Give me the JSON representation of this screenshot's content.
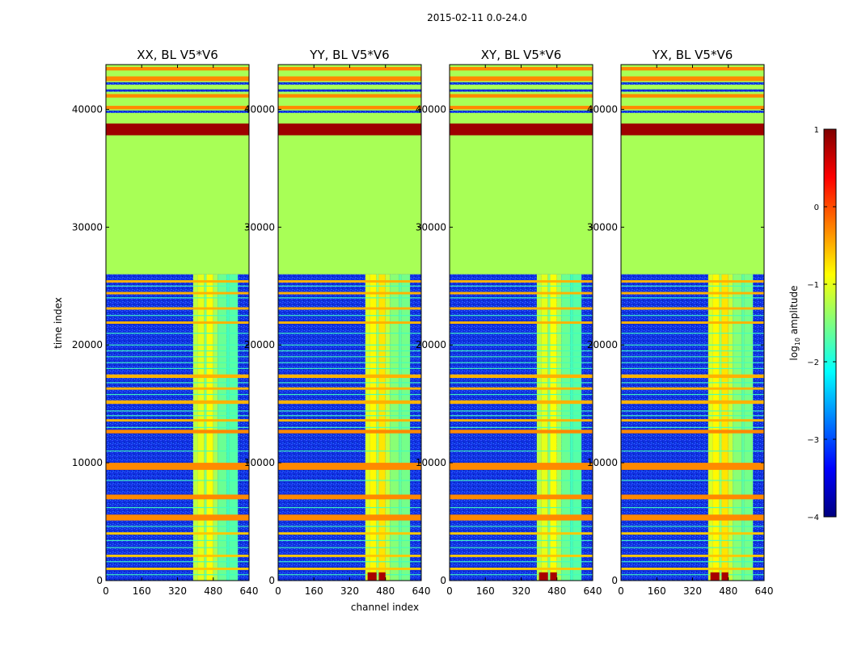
{
  "chart_data": {
    "type": "heatmap",
    "suptitle": "2015-02-11 0.0-24.0",
    "xlabel": "channel index",
    "ylabel": "time index",
    "xlim": [
      0,
      640
    ],
    "ylim": [
      0,
      43800
    ],
    "xticks": [
      0,
      160,
      320,
      480,
      640
    ],
    "yticks": [
      0,
      10000,
      20000,
      30000,
      40000
    ],
    "panels": [
      {
        "title": "XX, BL V5*V6"
      },
      {
        "title": "YY, BL V5*V6"
      },
      {
        "title": "XY, BL V5*V6"
      },
      {
        "title": "YX, BL V5*V6"
      }
    ],
    "colorbar": {
      "label_main": "log",
      "label_sub": "10",
      "label_tail": " amplitude",
      "range": [
        -4,
        1
      ],
      "ticks": [
        {
          "value": 1,
          "label": "1"
        },
        {
          "value": 0,
          "label": "0"
        },
        {
          "value": -1,
          "label": "−1"
        },
        {
          "value": -2,
          "label": "−2"
        },
        {
          "value": -3,
          "label": "−3"
        },
        {
          "value": -4,
          "label": "−4"
        }
      ],
      "colors": [
        "#00007f",
        "#0000ff",
        "#007fff",
        "#00ffff",
        "#7fff7f",
        "#ffff00",
        "#ff7f00",
        "#ff0000",
        "#7f0000"
      ]
    },
    "background_level": -3.1,
    "flagged_level": -1.3,
    "flagged_block": [
      26000,
      43800
    ],
    "bright_band": {
      "range": [
        37800,
        38800
      ],
      "level": 0.85
    },
    "horizontal_bands": [
      {
        "t0": 42400,
        "t1": 42800,
        "level": -0.3
      },
      {
        "t0": 41000,
        "t1": 41300,
        "level": -0.3
      },
      {
        "t0": 40000,
        "t1": 40300,
        "level": -0.2
      },
      {
        "t0": 25300,
        "t1": 25500,
        "level": -0.5
      },
      {
        "t0": 24300,
        "t1": 24500,
        "level": -0.5
      },
      {
        "t0": 23000,
        "t1": 23200,
        "level": -0.5
      },
      {
        "t0": 21800,
        "t1": 22000,
        "level": -0.5
      },
      {
        "t0": 17200,
        "t1": 17500,
        "level": -0.5
      },
      {
        "t0": 16200,
        "t1": 16400,
        "level": -0.5
      },
      {
        "t0": 15000,
        "t1": 15300,
        "level": -0.5
      },
      {
        "t0": 13500,
        "t1": 13700,
        "level": -0.5
      },
      {
        "t0": 12500,
        "t1": 12800,
        "level": -0.3
      },
      {
        "t0": 9400,
        "t1": 10000,
        "level": -0.3
      },
      {
        "t0": 6900,
        "t1": 7300,
        "level": -0.3
      },
      {
        "t0": 5100,
        "t1": 5600,
        "level": -0.3
      },
      {
        "t0": 3900,
        "t1": 4100,
        "level": -0.6
      },
      {
        "t0": 2000,
        "t1": 2200,
        "level": -0.6
      },
      {
        "t0": 900,
        "t1": 1100,
        "level": -0.6
      }
    ],
    "thin_lines": [
      25000,
      24000,
      22500,
      21000,
      20000,
      19500,
      19000,
      18500,
      18000,
      16800,
      15800,
      14400,
      14000,
      13000,
      11000,
      8500,
      6200,
      4600,
      3400,
      2800,
      1600,
      500
    ],
    "channel_strips": [
      {
        "c0": 390,
        "c1": 410,
        "level": -1.2
      },
      {
        "c0": 410,
        "c1": 440,
        "level": -1.0
      },
      {
        "c0": 440,
        "c1": 450,
        "level": -1.5
      },
      {
        "c0": 450,
        "c1": 480,
        "level": -0.9
      },
      {
        "c0": 480,
        "c1": 500,
        "level": -1.3
      },
      {
        "c0": 500,
        "c1": 540,
        "level": -1.6
      },
      {
        "c0": 540,
        "c1": 550,
        "level": -1.8
      },
      {
        "c0": 550,
        "c1": 590,
        "level": -1.7
      }
    ],
    "low_corner_flags": [
      {
        "c0": 400,
        "c1": 440,
        "t0": 0,
        "t1": 700,
        "level": 0.8
      },
      {
        "c0": 450,
        "c1": 480,
        "t0": 0,
        "t1": 700,
        "level": 0.8
      }
    ]
  }
}
